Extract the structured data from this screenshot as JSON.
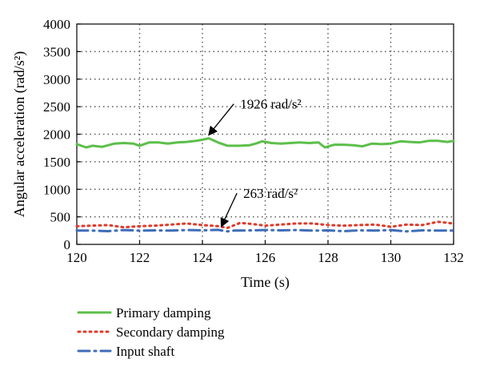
{
  "chart_data": {
    "type": "line",
    "xlabel": "Time (s)",
    "ylabel": "Angular acceleration (rad/s²)",
    "xlim": [
      120,
      132
    ],
    "ylim": [
      0,
      4000
    ],
    "x_ticks": [
      "120",
      "122",
      "124",
      "126",
      "128",
      "130",
      "132"
    ],
    "y_ticks": [
      "0",
      "500",
      "1000",
      "1500",
      "2000",
      "2500",
      "3000",
      "3500",
      "4000"
    ],
    "grid": "dotted",
    "legend_position": "bottom",
    "series": [
      {
        "name": "Primary damping",
        "color": "#5cbf4a",
        "style": "solid",
        "x": [
          120.0,
          120.3,
          120.5,
          120.8,
          121.2,
          121.5,
          121.8,
          122.0,
          122.3,
          122.6,
          122.9,
          123.2,
          123.5,
          123.8,
          124.0,
          124.2,
          124.5,
          124.8,
          125.2,
          125.5,
          125.7,
          125.9,
          126.2,
          126.5,
          126.8,
          127.1,
          127.4,
          127.7,
          127.9,
          128.2,
          128.5,
          128.8,
          129.1,
          129.4,
          129.7,
          130.0,
          130.3,
          130.6,
          130.9,
          131.2,
          131.5,
          131.8,
          132.0
        ],
        "y": [
          1820,
          1760,
          1790,
          1770,
          1830,
          1840,
          1830,
          1790,
          1850,
          1850,
          1830,
          1850,
          1860,
          1880,
          1900,
          1926,
          1850,
          1790,
          1790,
          1800,
          1830,
          1870,
          1840,
          1830,
          1840,
          1850,
          1840,
          1850,
          1760,
          1810,
          1810,
          1800,
          1780,
          1830,
          1820,
          1830,
          1870,
          1860,
          1850,
          1880,
          1880,
          1860,
          1880
        ]
      },
      {
        "name": "Secondary damping",
        "color": "#e03a2a",
        "style": "dotted",
        "x": [
          120.0,
          120.5,
          121.0,
          121.5,
          122.0,
          122.5,
          123.0,
          123.5,
          124.0,
          124.5,
          124.8,
          125.2,
          125.6,
          126.0,
          126.5,
          127.0,
          127.5,
          128.0,
          128.5,
          129.0,
          129.5,
          130.0,
          130.5,
          131.0,
          131.5,
          132.0
        ],
        "y": [
          330,
          340,
          350,
          310,
          330,
          340,
          360,
          380,
          350,
          330,
          300,
          390,
          370,
          340,
          360,
          380,
          380,
          350,
          340,
          350,
          360,
          320,
          360,
          350,
          410,
          380
        ]
      },
      {
        "name": "Input shaft",
        "color": "#3f6db8",
        "style": "dash-dot",
        "x": [
          120.0,
          120.5,
          121.0,
          121.5,
          122.0,
          122.5,
          123.0,
          123.5,
          124.0,
          124.5,
          124.8,
          125.0,
          125.5,
          126.0,
          126.5,
          127.0,
          127.5,
          128.0,
          128.5,
          129.0,
          129.5,
          130.0,
          130.5,
          131.0,
          131.5,
          132.0
        ],
        "y": [
          250,
          250,
          240,
          260,
          250,
          255,
          250,
          260,
          255,
          263,
          235,
          250,
          255,
          260,
          255,
          260,
          250,
          255,
          240,
          255,
          250,
          260,
          235,
          255,
          250,
          250
        ]
      }
    ],
    "annotations": [
      {
        "text": "1926 rad/s²",
        "x": 124.2,
        "y": 1926,
        "text_x": 125.0,
        "text_y": 2550
      },
      {
        "text": "263 rad/s²",
        "x": 124.6,
        "y": 263,
        "text_x": 125.1,
        "text_y": 930
      }
    ]
  }
}
